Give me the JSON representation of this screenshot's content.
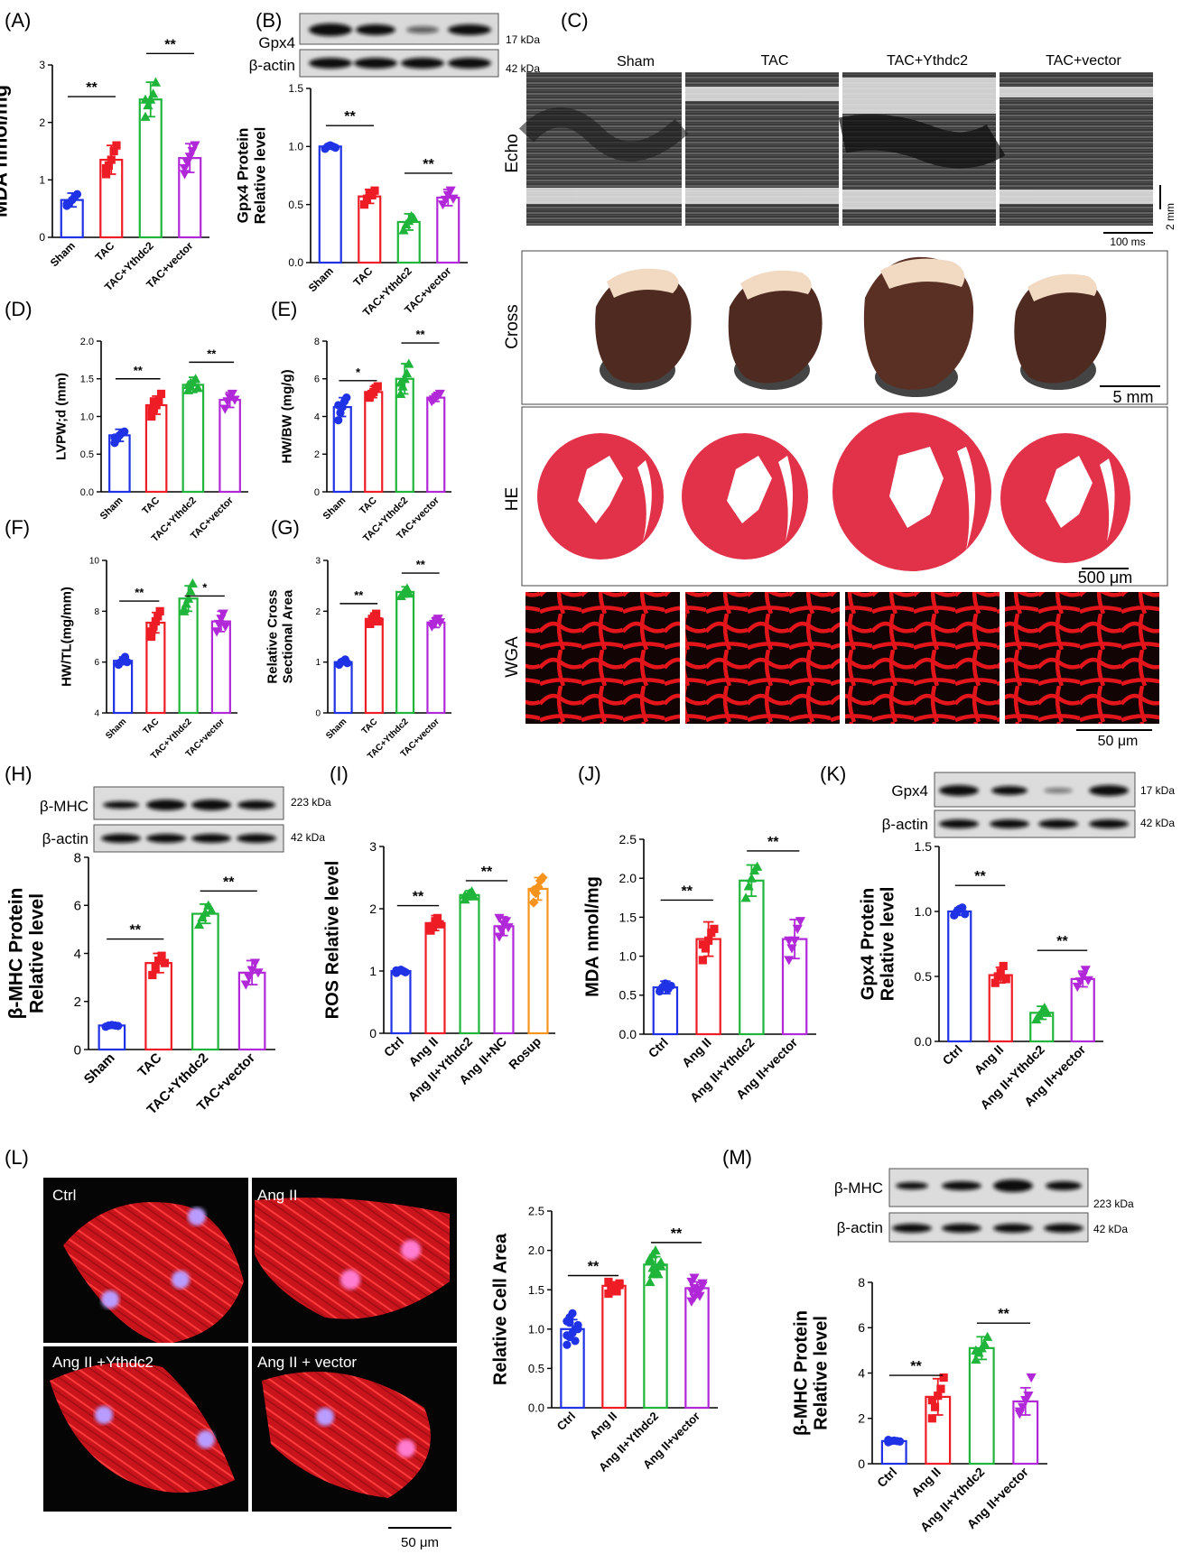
{
  "figure_title": "",
  "colors": {
    "blue": "#1f32e6",
    "red": "#ee1c25",
    "green": "#1fb53a",
    "purple": "#b128d8",
    "orange": "#f7941d"
  },
  "panels": {
    "A": "(A)",
    "B": "(B)",
    "C": "(C)",
    "D": "(D)",
    "E": "(E)",
    "F": "(F)",
    "G": "(G)",
    "H": "(H)",
    "I": "(I)",
    "J": "(J)",
    "K": "(K)",
    "L": "(L)",
    "M": "(M)"
  },
  "chart_data": [
    {
      "id": "A",
      "type": "bar",
      "ylabel": "MDA nmol/mg",
      "ylim": [
        0,
        3
      ],
      "yticks": [
        "0",
        "1",
        "2",
        "3"
      ],
      "categories": [
        "Sham",
        "TAC",
        "TAC+Ythdc2",
        "TAC+vector"
      ],
      "values": [
        0.65,
        1.35,
        2.4,
        1.38
      ],
      "errors": [
        0.12,
        0.25,
        0.3,
        0.25
      ],
      "points": [
        [
          0.55,
          0.6,
          0.65,
          0.7,
          0.75,
          0.58
        ],
        [
          1.1,
          1.25,
          1.35,
          1.5,
          1.6,
          1.2
        ],
        [
          2.1,
          2.3,
          2.4,
          2.5,
          2.7,
          2.4
        ],
        [
          1.1,
          1.3,
          1.4,
          1.5,
          1.6,
          1.2
        ]
      ],
      "markers": [
        "circle",
        "square",
        "triangle",
        "down-triangle"
      ],
      "sig": [
        {
          "a": 0,
          "b": 1,
          "y": 2.45,
          "t": "**"
        },
        {
          "a": 2,
          "b": 3,
          "y": 3.2,
          "t": "**"
        }
      ]
    },
    {
      "id": "B",
      "type": "bar",
      "ylabel": "Gpx4 Protein|Relative level",
      "ylim": [
        0,
        1.5
      ],
      "yticks": [
        "0.0",
        "0.5",
        "1.0",
        "1.5"
      ],
      "categories": [
        "Sham",
        "TAC",
        "TAC+Ythdc2",
        "TAC+vector"
      ],
      "values": [
        1.0,
        0.57,
        0.35,
        0.56
      ],
      "errors": [
        0.02,
        0.06,
        0.07,
        0.07
      ],
      "points": [
        [
          0.98,
          1.0,
          1.01,
          1.0,
          0.99
        ],
        [
          0.5,
          0.55,
          0.6,
          0.58,
          0.62
        ],
        [
          0.28,
          0.33,
          0.36,
          0.4,
          0.38
        ],
        [
          0.5,
          0.54,
          0.58,
          0.62,
          0.55
        ]
      ],
      "markers": [
        "circle",
        "square",
        "triangle",
        "down-triangle"
      ],
      "sig": [
        {
          "a": 0,
          "b": 1,
          "y": 1.18,
          "t": "**"
        },
        {
          "a": 2,
          "b": 3,
          "y": 0.77,
          "t": "**"
        }
      ]
    },
    {
      "id": "D",
      "type": "bar",
      "ylabel": "LVPW;d (mm)",
      "ylim": [
        0,
        2
      ],
      "yticks": [
        "0.0",
        "0.5",
        "1.0",
        "1.5",
        "2.0"
      ],
      "categories": [
        "Sham",
        "TAC",
        "TAC+Ythdc2",
        "TAC+vector"
      ],
      "values": [
        0.75,
        1.15,
        1.42,
        1.22
      ],
      "errors": [
        0.08,
        0.12,
        0.1,
        0.1
      ],
      "points": [
        [
          0.65,
          0.7,
          0.75,
          0.78,
          0.8,
          0.72,
          0.7,
          0.75
        ],
        [
          1.0,
          1.1,
          1.15,
          1.2,
          1.3,
          1.1,
          1.2
        ],
        [
          1.35,
          1.4,
          1.45,
          1.5,
          1.38,
          1.42,
          1.45
        ],
        [
          1.1,
          1.2,
          1.25,
          1.3,
          1.22
        ]
      ],
      "markers": [
        "circle",
        "square",
        "triangle",
        "down-triangle"
      ],
      "sig": [
        {
          "a": 0,
          "b": 1,
          "y": 1.5,
          "t": "**"
        },
        {
          "a": 2,
          "b": 3,
          "y": 1.72,
          "t": "**"
        }
      ]
    },
    {
      "id": "E",
      "type": "bar",
      "ylabel": "HW/BW (mg/g)",
      "ylim": [
        0,
        8
      ],
      "yticks": [
        "0",
        "2",
        "4",
        "6",
        "8"
      ],
      "categories": [
        "Sham",
        "TAC",
        "TAC+Ythdc2",
        "TAC+vector"
      ],
      "values": [
        4.5,
        5.3,
        6.0,
        5.0
      ],
      "errors": [
        0.5,
        0.3,
        0.8,
        0.2
      ],
      "points": [
        [
          3.8,
          4.2,
          4.5,
          4.8,
          5.0,
          4.6
        ],
        [
          5.0,
          5.2,
          5.3,
          5.5,
          5.6,
          5.1
        ],
        [
          5.2,
          5.6,
          6.0,
          6.3,
          6.8,
          5.8
        ],
        [
          4.8,
          4.9,
          5.0,
          5.1,
          5.2
        ]
      ],
      "markers": [
        "circle",
        "square",
        "triangle",
        "down-triangle"
      ],
      "sig": [
        {
          "a": 0,
          "b": 1,
          "y": 5.9,
          "t": "*"
        },
        {
          "a": 2,
          "b": 3,
          "y": 7.9,
          "t": "**"
        }
      ]
    },
    {
      "id": "F",
      "type": "bar",
      "ylabel": "HW/TL(mg/mm)",
      "ylim": [
        4,
        10
      ],
      "yticks": [
        "4",
        "6",
        "8",
        "10"
      ],
      "categories": [
        "Sham",
        "TAC",
        "TAC+Ythdc2",
        "TAC+vector"
      ],
      "values": [
        6.05,
        7.55,
        8.5,
        7.6
      ],
      "errors": [
        0.15,
        0.4,
        0.5,
        0.4
      ],
      "points": [
        [
          5.9,
          6.0,
          6.1,
          6.2,
          6.0
        ],
        [
          7.0,
          7.4,
          7.6,
          7.8,
          8.0,
          7.2
        ],
        [
          8.0,
          8.3,
          8.5,
          8.8,
          9.1,
          8.1
        ],
        [
          7.2,
          7.5,
          7.7,
          7.9,
          7.4
        ]
      ],
      "markers": [
        "circle",
        "square",
        "triangle",
        "down-triangle"
      ],
      "sig": [
        {
          "a": 0,
          "b": 1,
          "y": 8.4,
          "t": "**"
        },
        {
          "a": 2,
          "b": 3,
          "y": 8.6,
          "t": "*"
        }
      ]
    },
    {
      "id": "G",
      "type": "bar",
      "ylabel": "Relative Cross|Sectional Area",
      "ylim": [
        0,
        3
      ],
      "yticks": [
        "0",
        "1",
        "2",
        "3"
      ],
      "categories": [
        "Sham",
        "TAC",
        "TAC+Ythdc2",
        "TAC+vector"
      ],
      "values": [
        1.0,
        1.85,
        2.38,
        1.78
      ],
      "errors": [
        0.05,
        0.1,
        0.1,
        0.1
      ],
      "points": [
        [
          0.95,
          1.0,
          1.02,
          1.05,
          0.98
        ],
        [
          1.75,
          1.85,
          1.9,
          1.95,
          1.8
        ],
        [
          2.3,
          2.35,
          2.4,
          2.45,
          2.35
        ],
        [
          1.7,
          1.75,
          1.8,
          1.85,
          1.78
        ]
      ],
      "markers": [
        "circle",
        "square",
        "triangle",
        "down-triangle"
      ],
      "sig": [
        {
          "a": 0,
          "b": 1,
          "y": 2.15,
          "t": "**"
        },
        {
          "a": 2,
          "b": 3,
          "y": 2.75,
          "t": "**"
        }
      ]
    },
    {
      "id": "H",
      "type": "bar",
      "ylabel": "β-MHC Protein|Relative level",
      "ylim": [
        0,
        8
      ],
      "yticks": [
        "0",
        "2",
        "4",
        "6",
        "8"
      ],
      "categories": [
        "Sham",
        "TAC",
        "TAC+Ythdc2",
        "TAC+vector"
      ],
      "values": [
        1.0,
        3.6,
        5.65,
        3.2
      ],
      "errors": [
        0.05,
        0.4,
        0.4,
        0.5
      ],
      "points": [
        [
          0.95,
          1.0,
          1.02,
          1.0,
          0.98
        ],
        [
          3.1,
          3.4,
          3.7,
          3.9,
          3.6
        ],
        [
          5.2,
          5.5,
          5.7,
          6.0,
          5.8
        ],
        [
          2.7,
          3.0,
          3.3,
          3.6,
          3.2
        ]
      ],
      "markers": [
        "circle",
        "square",
        "triangle",
        "down-triangle"
      ],
      "sig": [
        {
          "a": 0,
          "b": 1,
          "y": 4.6,
          "t": "**"
        },
        {
          "a": 2,
          "b": 3,
          "y": 6.6,
          "t": "**"
        }
      ]
    },
    {
      "id": "I",
      "type": "bar",
      "ylabel": "ROS Relative level",
      "ylim": [
        0,
        3
      ],
      "yticks": [
        "0",
        "1",
        "2",
        "3"
      ],
      "categories": [
        "Ctrl",
        "Ang II",
        "Ang II+Ythdc2",
        "Ang II+NC",
        "Rosup"
      ],
      "values": [
        1.0,
        1.77,
        2.22,
        1.72,
        2.32
      ],
      "errors": [
        0.04,
        0.12,
        0.07,
        0.15,
        0.18
      ],
      "points": [
        [
          0.97,
          1.0,
          1.02,
          1.0,
          0.98,
          1.01
        ],
        [
          1.65,
          1.72,
          1.8,
          1.85,
          1.75,
          1.7
        ],
        [
          2.15,
          2.2,
          2.25,
          2.28,
          2.2,
          2.22
        ],
        [
          1.55,
          1.65,
          1.75,
          1.8,
          1.7,
          1.85
        ],
        [
          2.1,
          2.25,
          2.35,
          2.45,
          2.5,
          2.3
        ]
      ],
      "markers": [
        "circle",
        "square",
        "triangle",
        "down-triangle",
        "diamond"
      ],
      "sig": [
        {
          "a": 0,
          "b": 1,
          "y": 2.05,
          "t": "**"
        },
        {
          "a": 2,
          "b": 3,
          "y": 2.45,
          "t": "**"
        }
      ]
    },
    {
      "id": "J",
      "type": "bar",
      "ylabel": "MDA nmol/mg",
      "ylim": [
        0,
        2.5
      ],
      "yticks": [
        "0.0",
        "0.5",
        "1.0",
        "1.5",
        "2.0",
        "2.5"
      ],
      "categories": [
        "Ctrl",
        "Ang II",
        "Ang II+Ythdc2",
        "Ang II+vector"
      ],
      "values": [
        0.6,
        1.22,
        1.97,
        1.22
      ],
      "errors": [
        0.08,
        0.22,
        0.2,
        0.25
      ],
      "points": [
        [
          0.55,
          0.6,
          0.65,
          0.58,
          0.62
        ],
        [
          0.95,
          1.1,
          1.2,
          1.3,
          1.35,
          1.15
        ],
        [
          1.75,
          1.9,
          2.0,
          2.1,
          2.15
        ],
        [
          0.95,
          1.1,
          1.2,
          1.35,
          1.45,
          1.2
        ]
      ],
      "markers": [
        "circle",
        "square",
        "triangle",
        "down-triangle"
      ],
      "sig": [
        {
          "a": 0,
          "b": 1,
          "y": 1.72,
          "t": "**"
        },
        {
          "a": 2,
          "b": 3,
          "y": 2.35,
          "t": "**"
        }
      ]
    },
    {
      "id": "K",
      "type": "bar",
      "ylabel": "Gpx4 Protein|Relative level",
      "ylim": [
        0,
        1.5
      ],
      "yticks": [
        "0.0",
        "0.5",
        "1.0",
        "1.5"
      ],
      "categories": [
        "Ctrl",
        "Ang II",
        "Ang II+Ythdc2",
        "Ang II+vector"
      ],
      "values": [
        1.0,
        0.51,
        0.22,
        0.48
      ],
      "errors": [
        0.03,
        0.06,
        0.05,
        0.06
      ],
      "points": [
        [
          0.97,
          1.0,
          1.02,
          1.03,
          0.98
        ],
        [
          0.45,
          0.5,
          0.53,
          0.58,
          0.48
        ],
        [
          0.17,
          0.2,
          0.23,
          0.26,
          0.22
        ],
        [
          0.42,
          0.46,
          0.5,
          0.55,
          0.47
        ]
      ],
      "markers": [
        "circle",
        "square",
        "triangle",
        "down-triangle"
      ],
      "sig": [
        {
          "a": 0,
          "b": 1,
          "y": 1.2,
          "t": "**"
        },
        {
          "a": 2,
          "b": 3,
          "y": 0.7,
          "t": "**"
        }
      ]
    },
    {
      "id": "L",
      "type": "bar",
      "ylabel": "Relative Cell Area",
      "ylim": [
        0,
        2.5
      ],
      "yticks": [
        "0.0",
        "0.5",
        "1.0",
        "1.5",
        "2.0",
        "2.5"
      ],
      "categories": [
        "Ctrl",
        "Ang II",
        "Ang II+Ythdc2",
        "Ang II+vector"
      ],
      "values": [
        1.0,
        1.55,
        1.82,
        1.52
      ],
      "errors": [
        0.12,
        0.05,
        0.1,
        0.08
      ],
      "points": [
        [
          0.8,
          0.9,
          0.95,
          1.0,
          1.05,
          1.1,
          1.15,
          1.2,
          0.85,
          1.0,
          0.92,
          1.08
        ],
        [
          1.45,
          1.5,
          1.52,
          1.55,
          1.58,
          1.6,
          1.5,
          1.55,
          1.48,
          1.56
        ],
        [
          1.6,
          1.7,
          1.75,
          1.8,
          1.85,
          1.9,
          1.95,
          2.0,
          1.7,
          1.8,
          1.88,
          1.78
        ],
        [
          1.35,
          1.4,
          1.45,
          1.5,
          1.55,
          1.6,
          1.65,
          1.5,
          1.42,
          1.58,
          1.48,
          1.52
        ]
      ],
      "markers": [
        "circle",
        "square",
        "triangle",
        "down-triangle"
      ],
      "sig": [
        {
          "a": 0,
          "b": 1,
          "y": 1.68,
          "t": "**"
        },
        {
          "a": 2,
          "b": 3,
          "y": 2.1,
          "t": "**"
        }
      ]
    },
    {
      "id": "M",
      "type": "bar",
      "ylabel": "β-MHC Protein|Relative level",
      "ylim": [
        0,
        8
      ],
      "yticks": [
        "0",
        "2",
        "4",
        "6",
        "8"
      ],
      "categories": [
        "Ctrl",
        "Ang II",
        "Ang II+Ythdc2",
        "Ang II+vector"
      ],
      "values": [
        1.0,
        2.95,
        5.1,
        2.75
      ],
      "errors": [
        0.05,
        0.8,
        0.5,
        0.6
      ],
      "points": [
        [
          0.95,
          1.0,
          1.02,
          1.0,
          0.98,
          1.05
        ],
        [
          2.0,
          2.5,
          3.0,
          3.3,
          3.8,
          2.8
        ],
        [
          4.6,
          4.9,
          5.1,
          5.3,
          5.6,
          5.0
        ],
        [
          2.2,
          2.5,
          2.8,
          3.0,
          3.8,
          2.3
        ]
      ],
      "markers": [
        "circle",
        "square",
        "triangle",
        "down-triangle"
      ],
      "sig": [
        {
          "a": 0,
          "b": 1,
          "y": 3.9,
          "t": "**"
        },
        {
          "a": 2,
          "b": 3,
          "y": 6.2,
          "t": "**"
        }
      ]
    }
  ],
  "blots": {
    "B": {
      "rows": [
        "Gpx4",
        "β-actin"
      ],
      "kda": [
        "17 kDa",
        "42 kDa"
      ]
    },
    "H": {
      "rows": [
        "β-MHC",
        "β-actin"
      ],
      "kda": [
        "223 kDa",
        "42 kDa"
      ]
    },
    "K": {
      "rows": [
        "Gpx4",
        "β-actin"
      ],
      "kda": [
        "17 kDa",
        "42 kDa"
      ]
    },
    "M": {
      "rows": [
        "β-MHC",
        "β-actin"
      ],
      "kda": [
        "223 kDa",
        "42 kDa"
      ]
    }
  },
  "panelC": {
    "groups": [
      "Sham",
      "TAC",
      "TAC+Ythdc2",
      "TAC+vector"
    ],
    "rows": [
      "Echo",
      "Cross",
      "HE",
      "WGA"
    ],
    "scale_echo_v": "2 mm",
    "scale_echo_h": "100 ms",
    "scale_cross": "5 mm",
    "scale_he": "500 μm",
    "scale_wga": "50 μm"
  },
  "panelL": {
    "labels": [
      "Ctrl",
      "Ang II",
      "Ang II +Ythdc2",
      "Ang II + vector"
    ],
    "scale": "50 μm"
  }
}
